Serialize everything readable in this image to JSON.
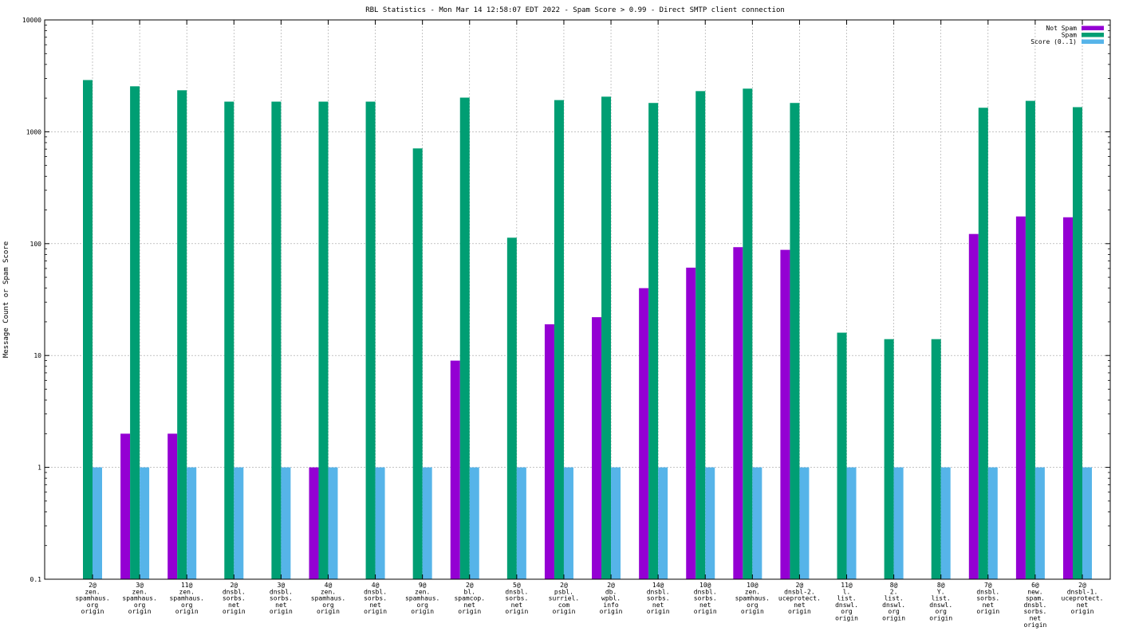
{
  "chart_data": {
    "type": "bar",
    "title": "RBL Statistics - Mon Mar 14 12:58:07 EDT 2022 - Spam Score > 0.99 - Direct SMTP client connection",
    "xlabel": "",
    "ylabel": "Message Count or Spam Score",
    "yscale": "log",
    "ylim": [
      0.1,
      10000
    ],
    "yticks": [
      "0.1",
      "1",
      "10",
      "100",
      "1000",
      "10000"
    ],
    "grid": true,
    "legend_position": "top-right",
    "categories": [
      [
        "2@",
        "zen.",
        "spamhaus.",
        "org",
        "origin"
      ],
      [
        "3@",
        "zen.",
        "spamhaus.",
        "org",
        "origin"
      ],
      [
        "11@",
        "zen.",
        "spamhaus.",
        "org",
        "origin"
      ],
      [
        "2@",
        "dnsbl.",
        "sorbs.",
        "net",
        "origin"
      ],
      [
        "3@",
        "dnsbl.",
        "sorbs.",
        "net",
        "origin"
      ],
      [
        "4@",
        "zen.",
        "spamhaus.",
        "org",
        "origin"
      ],
      [
        "4@",
        "dnsbl.",
        "sorbs.",
        "net",
        "origin"
      ],
      [
        "9@",
        "zen.",
        "spamhaus.",
        "org",
        "origin"
      ],
      [
        "2@",
        "bl.",
        "spamcop.",
        "net",
        "origin"
      ],
      [
        "5@",
        "dnsbl.",
        "sorbs.",
        "net",
        "origin"
      ],
      [
        "2@",
        "psbl.",
        "surriel.",
        "com",
        "origin"
      ],
      [
        "2@",
        "db.",
        "wpbl.",
        "info",
        "origin"
      ],
      [
        "14@",
        "dnsbl.",
        "sorbs.",
        "net",
        "origin"
      ],
      [
        "10@",
        "dnsbl.",
        "sorbs.",
        "net",
        "origin"
      ],
      [
        "10@",
        "zen.",
        "spamhaus.",
        "org",
        "origin"
      ],
      [
        "2@",
        "dnsbl-2.",
        "uceprotect.",
        "net",
        "origin"
      ],
      [
        "11@",
        "l.",
        "list.",
        "dnswl.",
        "org",
        "origin"
      ],
      [
        "8@",
        "2.",
        "list.",
        "dnswl.",
        "org",
        "origin"
      ],
      [
        "8@",
        "Y.",
        "list.",
        "dnswl.",
        "org",
        "origin"
      ],
      [
        "7@",
        "dnsbl.",
        "sorbs.",
        "net",
        "origin"
      ],
      [
        "6@",
        "new.",
        "spam.",
        "dnsbl.",
        "sorbs.",
        "net",
        "origin"
      ],
      [
        "2@",
        "dnsbl-1.",
        "uceprotect.",
        "net",
        "origin"
      ]
    ],
    "series": [
      {
        "name": "Not Spam",
        "color": "#9400d3",
        "values": [
          null,
          2,
          2,
          null,
          null,
          1,
          null,
          null,
          9,
          null,
          19,
          22,
          40,
          61,
          93,
          88,
          null,
          null,
          null,
          122,
          175,
          172
        ]
      },
      {
        "name": "Spam",
        "color": "#009e73",
        "values": [
          2900,
          2550,
          2350,
          1860,
          1860,
          1860,
          1860,
          710,
          2020,
          113,
          1920,
          2060,
          1810,
          2310,
          2430,
          1810,
          16,
          14,
          14,
          1640,
          1890,
          1660
        ]
      },
      {
        "name": "Score (0..1)",
        "color": "#56b4e9",
        "values": [
          1,
          1,
          1,
          1,
          1,
          1,
          1,
          1,
          1,
          1,
          1,
          1,
          1,
          1,
          1,
          1,
          1,
          1,
          1,
          1,
          1,
          1
        ]
      }
    ]
  }
}
